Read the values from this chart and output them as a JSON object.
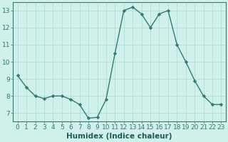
{
  "x": [
    0,
    1,
    2,
    3,
    4,
    5,
    6,
    7,
    8,
    9,
    10,
    11,
    12,
    13,
    14,
    15,
    16,
    17,
    18,
    19,
    20,
    21,
    22,
    23
  ],
  "y": [
    9.2,
    8.5,
    8.0,
    7.85,
    8.0,
    8.0,
    7.8,
    7.5,
    6.7,
    6.75,
    7.8,
    10.5,
    13.0,
    13.2,
    12.8,
    12.0,
    12.8,
    13.0,
    11.0,
    10.0,
    8.9,
    8.0,
    7.5,
    7.5
  ],
  "line_color": "#2e7d6e",
  "marker": "D",
  "marker_size": 2.2,
  "bg_color": "#cff0eb",
  "grid_color": "#b0ddd7",
  "xlabel": "Humidex (Indice chaleur)",
  "ylim": [
    6.5,
    13.5
  ],
  "xlim": [
    -0.5,
    23.5
  ],
  "yticks": [
    7,
    8,
    9,
    10,
    11,
    12,
    13
  ],
  "xticks": [
    0,
    1,
    2,
    3,
    4,
    5,
    6,
    7,
    8,
    9,
    10,
    11,
    12,
    13,
    14,
    15,
    16,
    17,
    18,
    19,
    20,
    21,
    22,
    23
  ],
  "xlabel_fontsize": 7.5,
  "tick_fontsize": 6.5,
  "linewidth": 1.0,
  "spine_color": "#2e7d6e"
}
